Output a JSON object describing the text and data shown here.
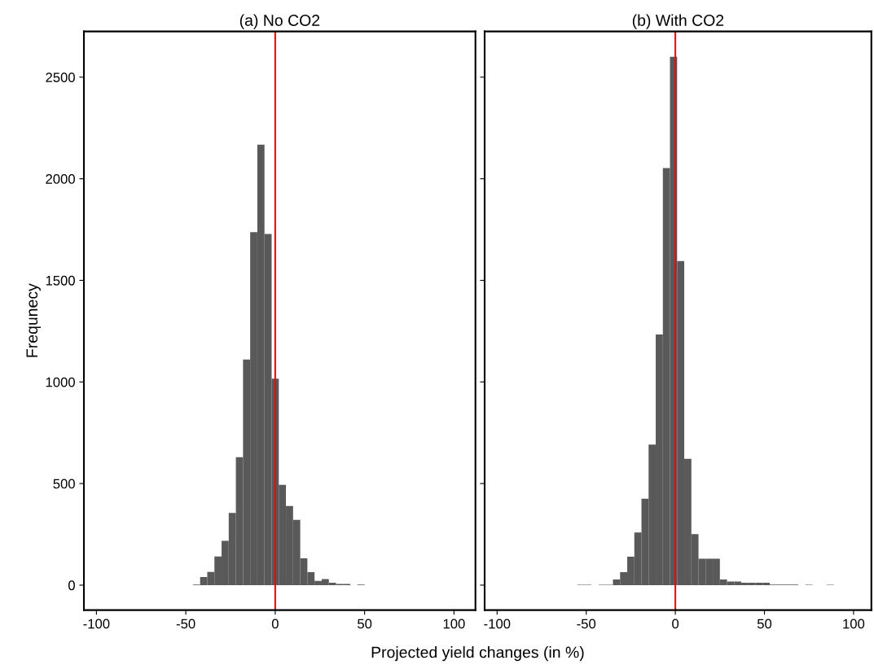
{
  "chart_data": [
    {
      "type": "histogram",
      "title": "(a) No CO2",
      "xlabel": "Projected yield changes (in %)",
      "ylabel": "Frequnecy",
      "color": "#595959",
      "bins": [
        -46,
        -42,
        -38,
        -34,
        -30,
        -26,
        -22,
        -18,
        -14,
        -10,
        -6,
        -2,
        2,
        6,
        10,
        14,
        18,
        22,
        26,
        30,
        34,
        38,
        42,
        46,
        50
      ],
      "values": [
        3,
        40,
        65,
        141,
        218,
        355,
        630,
        1110,
        1737,
        2168,
        1728,
        1016,
        493,
        389,
        321,
        132,
        64,
        21,
        30,
        12,
        6,
        6,
        0,
        3
      ],
      "xlim": [
        -107,
        112
      ],
      "ylim": [
        -123,
        2725
      ],
      "xticks": [
        -100,
        -50,
        0,
        50,
        100
      ],
      "yticks": [
        0,
        500,
        1000,
        1500,
        2000,
        2500
      ],
      "ref_lines": [
        {
          "axis": "x",
          "value": 0,
          "color": "#ff0000"
        }
      ],
      "grid": false
    },
    {
      "type": "histogram",
      "title": "(b) With CO2",
      "color": "#595959",
      "bins": [
        -55,
        -51,
        -47,
        -43,
        -39,
        -35,
        -31,
        -27,
        -23,
        -19,
        -15,
        -11,
        -7,
        -3,
        1,
        5,
        9,
        13,
        17,
        21,
        25,
        29,
        33,
        37,
        41,
        45,
        49,
        53,
        57,
        61,
        65,
        69,
        73,
        77,
        81,
        85,
        89
      ],
      "values": [
        2,
        2,
        0,
        2,
        2,
        28,
        64,
        140,
        259,
        425,
        692,
        1234,
        2053,
        2600,
        1595,
        622,
        251,
        130,
        130,
        130,
        28,
        18,
        18,
        12,
        12,
        12,
        12,
        3,
        3,
        3,
        3,
        0,
        2,
        0,
        0,
        2
      ],
      "xlim": [
        -107,
        110
      ],
      "ylim": [
        -123,
        2725
      ],
      "xticks": [
        -100,
        -50,
        0,
        50,
        100
      ],
      "yticks": [
        0,
        500,
        1000,
        1500,
        2000,
        2500
      ],
      "tick_labels": "x",
      "ref_lines": [
        {
          "axis": "x",
          "value": 0,
          "color": "#ff0000"
        }
      ],
      "grid": false
    }
  ]
}
